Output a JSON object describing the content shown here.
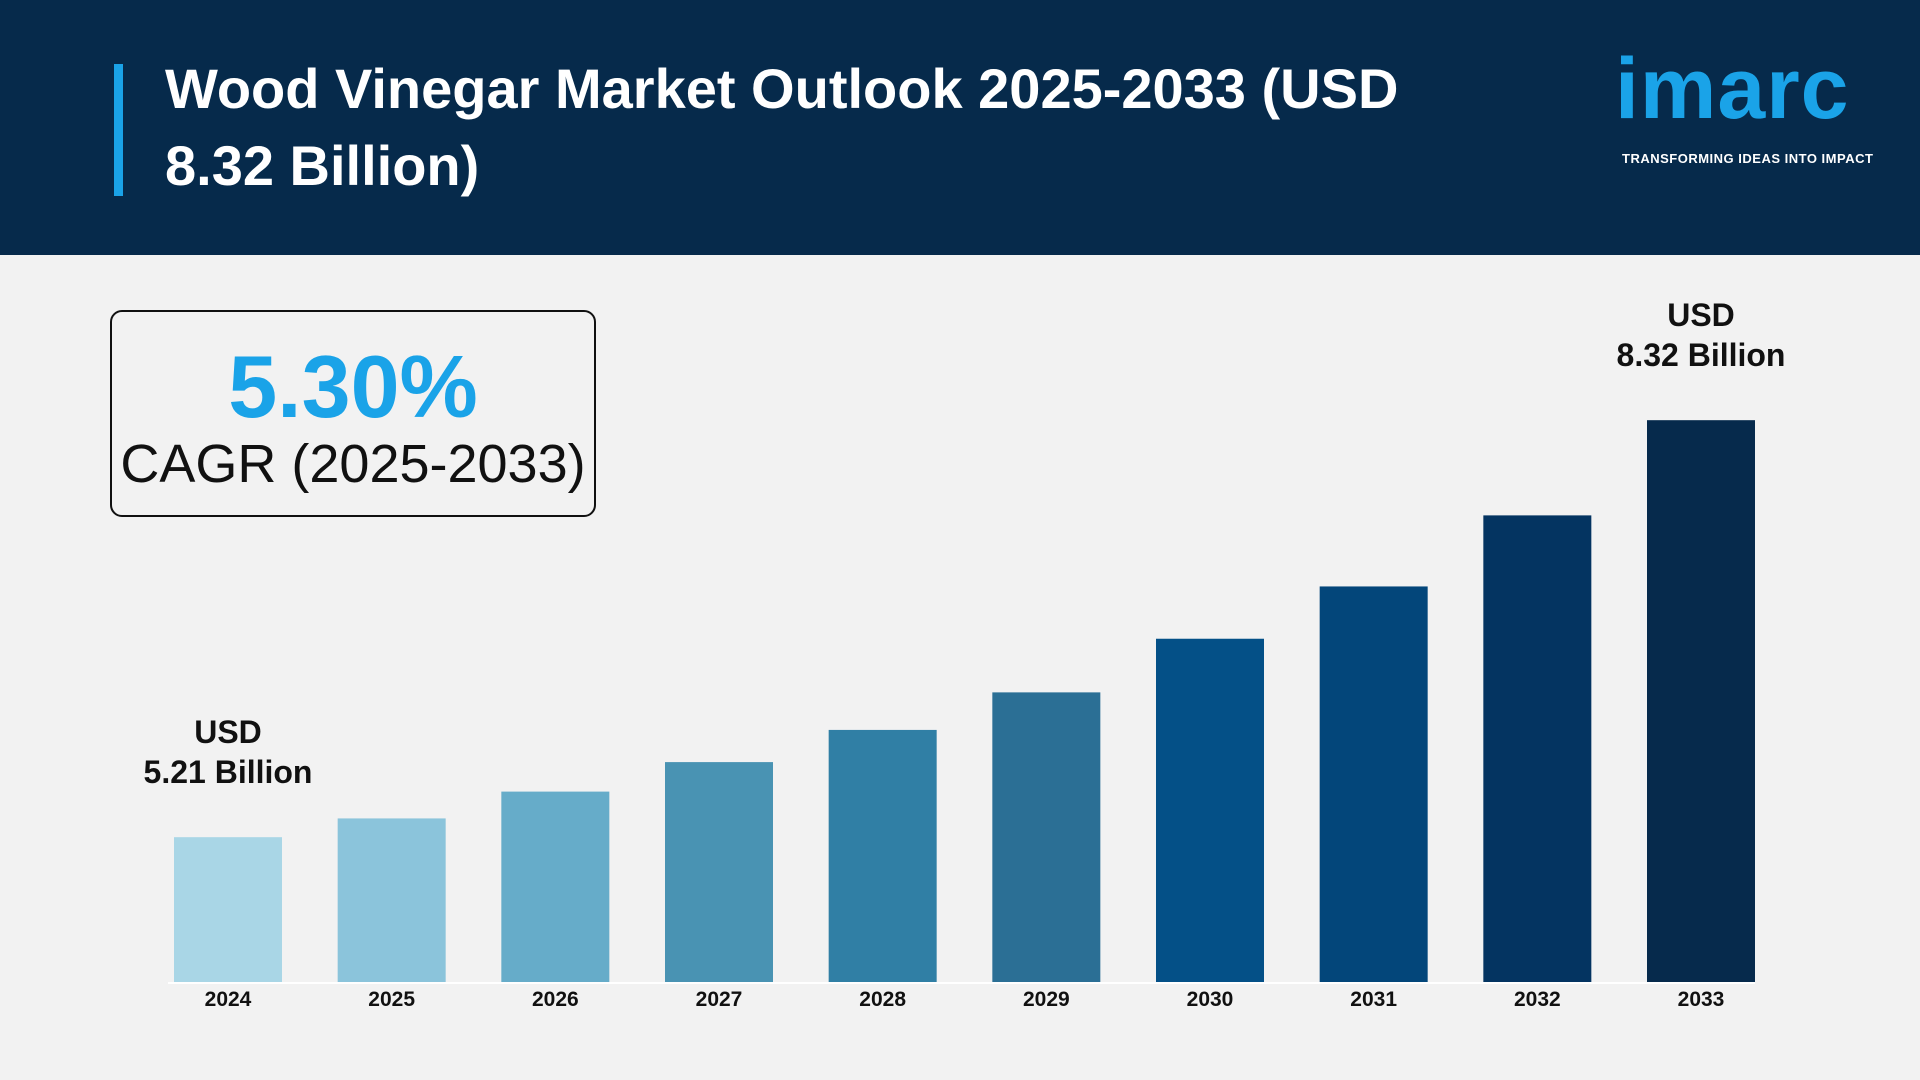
{
  "header": {
    "title": "Wood Vinegar Market Outlook 2025-2033 (USD 8.32 Billion)",
    "logo": "imarc",
    "tagline": "TRANSFORMING IDEAS INTO IMPACT"
  },
  "highlight": {
    "value": "5.30%",
    "label": "CAGR (2025-2033)"
  },
  "chart_data": {
    "type": "bar",
    "categories": [
      "2024",
      "2025",
      "2026",
      "2027",
      "2028",
      "2029",
      "2030",
      "2031",
      "2032",
      "2033"
    ],
    "values": [
      5.21,
      5.35,
      5.55,
      5.77,
      6.01,
      6.29,
      6.69,
      7.08,
      7.61,
      8.32
    ],
    "value_labels": [
      "USD\n5.21 Billion",
      null,
      null,
      null,
      null,
      null,
      null,
      null,
      null,
      "USD\n8.32 Billion"
    ],
    "colors": [
      "#a9d6e6",
      "#8bc4db",
      "#66acc9",
      "#4993b3",
      "#307fa5",
      "#2b6f95",
      "#045087",
      "#03467a",
      "#043461",
      "#062a4c"
    ],
    "ylim": [
      4.13,
      9.0
    ]
  }
}
